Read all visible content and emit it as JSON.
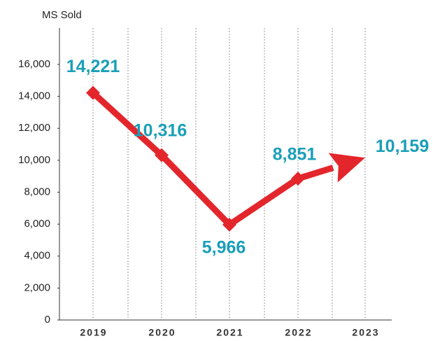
{
  "chart_data": {
    "type": "line",
    "y_label": "MS Sold",
    "categories": [
      "2019",
      "2020",
      "2021",
      "2022",
      "2023"
    ],
    "values": [
      14221,
      10316,
      5966,
      8851,
      10159
    ],
    "value_labels": [
      "14,221",
      "10,316",
      "5,966",
      "8,851",
      "10,159"
    ],
    "color": "#e3262c",
    "label_color": "#1a9fb8",
    "ylim": [
      0,
      16000
    ],
    "yticks": [
      0,
      {
        "value": 2000,
        "label": "2,000"
      },
      {
        "value": 4000,
        "label": "4,000"
      },
      {
        "value": 6000,
        "label": "6,000"
      },
      {
        "value": 8000,
        "label": "8,000"
      },
      {
        "value": 10000,
        "label": "10,000"
      },
      {
        "value": 12000,
        "label": "12,000"
      },
      {
        "value": 14000,
        "label": "14,000"
      },
      {
        "value": 16000,
        "label": "16,000"
      }
    ]
  }
}
